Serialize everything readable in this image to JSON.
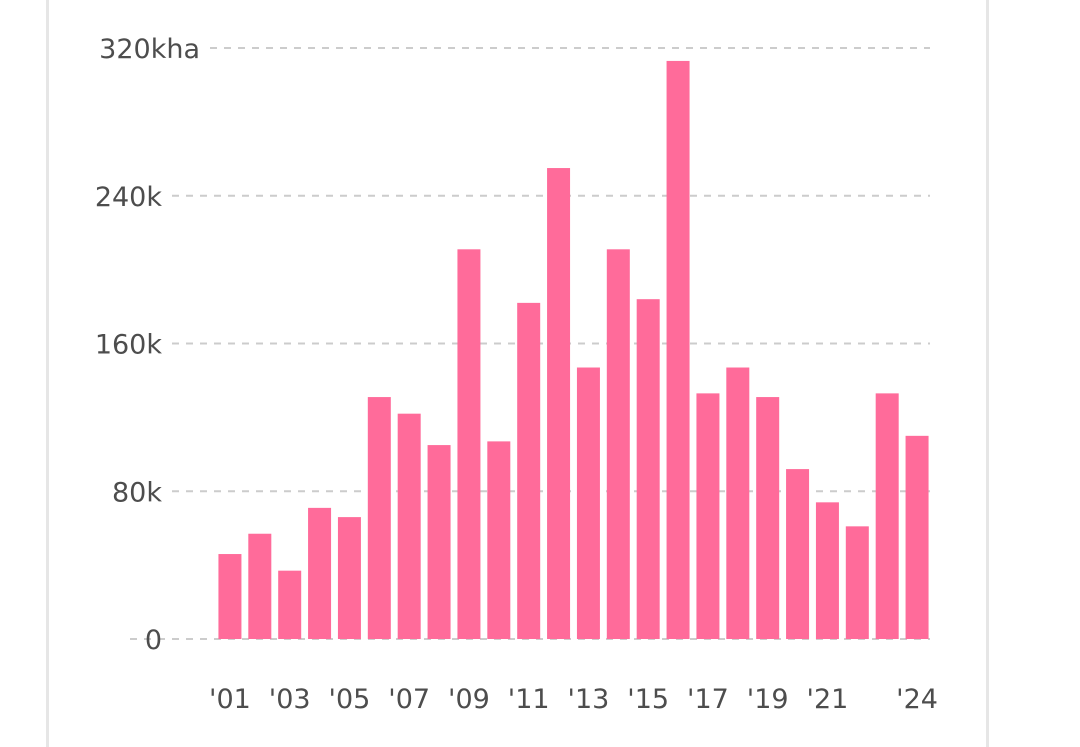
{
  "chart_data": {
    "type": "bar",
    "title": "",
    "xlabel": "",
    "ylabel": "",
    "y_unit": "kha",
    "ylim": [
      0,
      320000
    ],
    "y_ticks": [
      {
        "value": 0,
        "label": "0"
      },
      {
        "value": 80000,
        "label": "80k"
      },
      {
        "value": 160000,
        "label": "160k"
      },
      {
        "value": 240000,
        "label": "240k"
      },
      {
        "value": 320000,
        "label": "320kha"
      }
    ],
    "categories": [
      "2001",
      "2002",
      "2003",
      "2004",
      "2005",
      "2006",
      "2007",
      "2008",
      "2009",
      "2010",
      "2011",
      "2012",
      "2013",
      "2014",
      "2015",
      "2016",
      "2017",
      "2018",
      "2019",
      "2020",
      "2021",
      "2022",
      "2023",
      "2024"
    ],
    "x_tick_labels": [
      {
        "index": 0,
        "label": "'01"
      },
      {
        "index": 2,
        "label": "'03"
      },
      {
        "index": 4,
        "label": "'05"
      },
      {
        "index": 6,
        "label": "'07"
      },
      {
        "index": 8,
        "label": "'09"
      },
      {
        "index": 10,
        "label": "'11"
      },
      {
        "index": 12,
        "label": "'13"
      },
      {
        "index": 14,
        "label": "'15"
      },
      {
        "index": 16,
        "label": "'17"
      },
      {
        "index": 18,
        "label": "'19"
      },
      {
        "index": 20,
        "label": "'21"
      },
      {
        "index": 23,
        "label": "'24"
      }
    ],
    "values": [
      46000,
      57000,
      37000,
      71000,
      66000,
      131000,
      122000,
      105000,
      211000,
      107000,
      182000,
      255000,
      147000,
      211000,
      184000,
      313000,
      133000,
      147000,
      131000,
      92000,
      74000,
      61000,
      133000,
      110000
    ],
    "bar_color": "#ff6b9a",
    "grid": true,
    "grid_color": "#cccccc"
  }
}
